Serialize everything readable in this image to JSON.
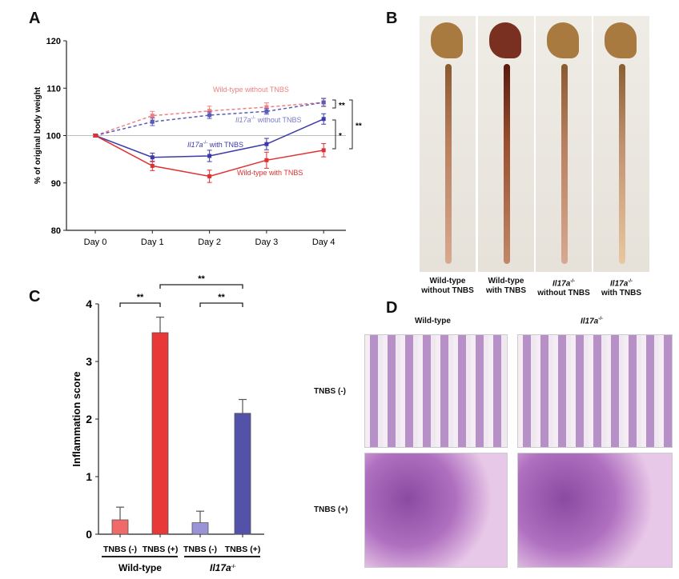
{
  "panels": {
    "a": "A",
    "b": "B",
    "c": "C",
    "d": "D"
  },
  "colors": {
    "wt_without": "#f08080",
    "il17_without": "#6a6ac8",
    "il17_with": "#3b3ba8",
    "wt_with": "#e03030"
  },
  "chart_data": [
    {
      "type": "line",
      "ylabel": "% of original body weight",
      "categories": [
        "Day 0",
        "Day 1",
        "Day 2",
        "Day 3",
        "Day 4"
      ],
      "ylim": [
        80,
        120
      ],
      "yticks": [
        "80",
        "90",
        "100",
        "110",
        "120"
      ],
      "reference_line": 100,
      "series": [
        {
          "name": "Wild-type without TNBS",
          "values": [
            100,
            104.2,
            105.2,
            106,
            107
          ],
          "errors": [
            0.3,
            0.9,
            1.0,
            0.9,
            0.9
          ],
          "dashed": true,
          "color": "#f08080"
        },
        {
          "name_main": "Il17a",
          "name_sup": "-/-",
          "name_rest": " without TNBS",
          "values": [
            100,
            102.9,
            104.3,
            105.1,
            107
          ],
          "errors": [
            0.3,
            0.8,
            0.7,
            0.6,
            0.8
          ],
          "dashed": true,
          "color": "#5a5ab8"
        },
        {
          "name_main": "Il17a",
          "name_sup": "-/-",
          "name_rest": " with TNBS",
          "values": [
            100,
            95.4,
            95.7,
            98.2,
            103.5
          ],
          "errors": [
            0.3,
            0.9,
            1.2,
            1.2,
            1.1
          ],
          "dashed": false,
          "color": "#3b3ba8"
        },
        {
          "name": "Wild-type with TNBS",
          "values": [
            100,
            93.6,
            91.4,
            94.8,
            96.9
          ],
          "errors": [
            0.3,
            1.0,
            1.3,
            1.7,
            1.4
          ],
          "dashed": false,
          "color": "#e03030"
        }
      ],
      "significance": [
        "**",
        "*",
        "**"
      ]
    },
    {
      "type": "bar",
      "ylabel": "Inflammation score",
      "categories": [
        "TNBS (-)",
        "TNBS (+)",
        "TNBS (-)",
        "TNBS (+)"
      ],
      "groups": [
        {
          "label": "Wild-type"
        },
        {
          "label_main": "Il17a",
          "label_sup": "-/-"
        }
      ],
      "values": [
        0.25,
        3.5,
        0.2,
        2.1
      ],
      "errors": [
        0.22,
        0.27,
        0.2,
        0.24
      ],
      "colors": [
        "#f06a6a",
        "#e83838",
        "#9894d6",
        "#5351a8"
      ],
      "ylim": [
        0,
        4
      ],
      "yticks": [
        "0",
        "1",
        "2",
        "3",
        "4"
      ],
      "significance": [
        "**",
        "**",
        "**"
      ]
    }
  ],
  "photos": {
    "labels": [
      [
        "Wild-type",
        "without TNBS"
      ],
      [
        "Wild-type",
        "with TNBS"
      ],
      [
        "Il17a",
        "without TNBS"
      ],
      [
        "Il17a",
        "with TNBS"
      ]
    ],
    "sup": "-/-"
  },
  "histology": {
    "cols": [
      {
        "label": "Wild-type"
      },
      {
        "label_main": "Il17a",
        "label_sup": "-/-"
      }
    ],
    "rows": [
      "TNBS (-)",
      "TNBS (+)"
    ]
  }
}
